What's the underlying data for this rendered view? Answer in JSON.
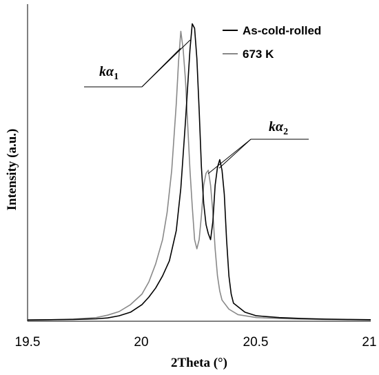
{
  "chart_data": {
    "type": "line",
    "xlabel": "2Theta (°)",
    "ylabel": "Intensity (a.u.)",
    "xlim": [
      19.5,
      21
    ],
    "ylim": [
      0,
      1.05
    ],
    "x_ticks": [
      "19.5",
      "20",
      "20.5",
      "21"
    ],
    "y_ticks": [],
    "grid": false,
    "legend_position": "top-right",
    "series": [
      {
        "name": "As-cold-rolled",
        "color": "#000000",
        "points": [
          [
            19.5,
            0.004
          ],
          [
            19.6,
            0.005
          ],
          [
            19.7,
            0.006
          ],
          [
            19.8,
            0.008
          ],
          [
            19.85,
            0.011
          ],
          [
            19.9,
            0.018
          ],
          [
            19.95,
            0.03
          ],
          [
            20.0,
            0.055
          ],
          [
            20.03,
            0.08
          ],
          [
            20.06,
            0.11
          ],
          [
            20.09,
            0.15
          ],
          [
            20.12,
            0.2
          ],
          [
            20.15,
            0.3
          ],
          [
            20.17,
            0.44
          ],
          [
            20.19,
            0.66
          ],
          [
            20.2,
            0.78
          ],
          [
            20.21,
            0.9
          ],
          [
            20.22,
            0.985
          ],
          [
            20.23,
            0.97
          ],
          [
            20.24,
            0.87
          ],
          [
            20.25,
            0.7
          ],
          [
            20.26,
            0.51
          ],
          [
            20.27,
            0.39
          ],
          [
            20.28,
            0.32
          ],
          [
            20.29,
            0.29
          ],
          [
            20.3,
            0.27
          ],
          [
            20.31,
            0.33
          ],
          [
            20.32,
            0.45
          ],
          [
            20.33,
            0.51
          ],
          [
            20.34,
            0.535
          ],
          [
            20.35,
            0.5
          ],
          [
            20.36,
            0.42
          ],
          [
            20.37,
            0.27
          ],
          [
            20.38,
            0.15
          ],
          [
            20.39,
            0.09
          ],
          [
            20.4,
            0.06
          ],
          [
            20.45,
            0.03
          ],
          [
            20.5,
            0.018
          ],
          [
            20.6,
            0.012
          ],
          [
            20.7,
            0.009
          ],
          [
            20.8,
            0.007
          ],
          [
            20.9,
            0.006
          ],
          [
            21.0,
            0.005
          ]
        ]
      },
      {
        "name": "673 K",
        "color": "#888888",
        "points": [
          [
            19.5,
            0.004
          ],
          [
            19.6,
            0.005
          ],
          [
            19.7,
            0.007
          ],
          [
            19.8,
            0.012
          ],
          [
            19.85,
            0.02
          ],
          [
            19.9,
            0.032
          ],
          [
            19.95,
            0.055
          ],
          [
            20.0,
            0.09
          ],
          [
            20.03,
            0.13
          ],
          [
            20.06,
            0.19
          ],
          [
            20.09,
            0.27
          ],
          [
            20.11,
            0.36
          ],
          [
            20.13,
            0.5
          ],
          [
            20.15,
            0.72
          ],
          [
            20.16,
            0.86
          ],
          [
            20.17,
            0.96
          ],
          [
            20.18,
            0.9
          ],
          [
            20.19,
            0.8
          ],
          [
            20.2,
            0.65
          ],
          [
            20.21,
            0.5
          ],
          [
            20.22,
            0.38
          ],
          [
            20.23,
            0.27
          ],
          [
            20.24,
            0.24
          ],
          [
            20.25,
            0.27
          ],
          [
            20.26,
            0.35
          ],
          [
            20.27,
            0.45
          ],
          [
            20.28,
            0.49
          ],
          [
            20.29,
            0.5
          ],
          [
            20.3,
            0.45
          ],
          [
            20.31,
            0.36
          ],
          [
            20.32,
            0.24
          ],
          [
            20.33,
            0.15
          ],
          [
            20.34,
            0.1
          ],
          [
            20.35,
            0.07
          ],
          [
            20.38,
            0.04
          ],
          [
            20.42,
            0.022
          ],
          [
            20.5,
            0.012
          ],
          [
            20.6,
            0.009
          ],
          [
            20.7,
            0.007
          ],
          [
            20.8,
            0.006
          ],
          [
            20.9,
            0.005
          ],
          [
            21.0,
            0.004
          ]
        ]
      }
    ],
    "annotations": [
      {
        "text": "kα",
        "sub": "1"
      },
      {
        "text": "kα",
        "sub": "2"
      }
    ]
  }
}
